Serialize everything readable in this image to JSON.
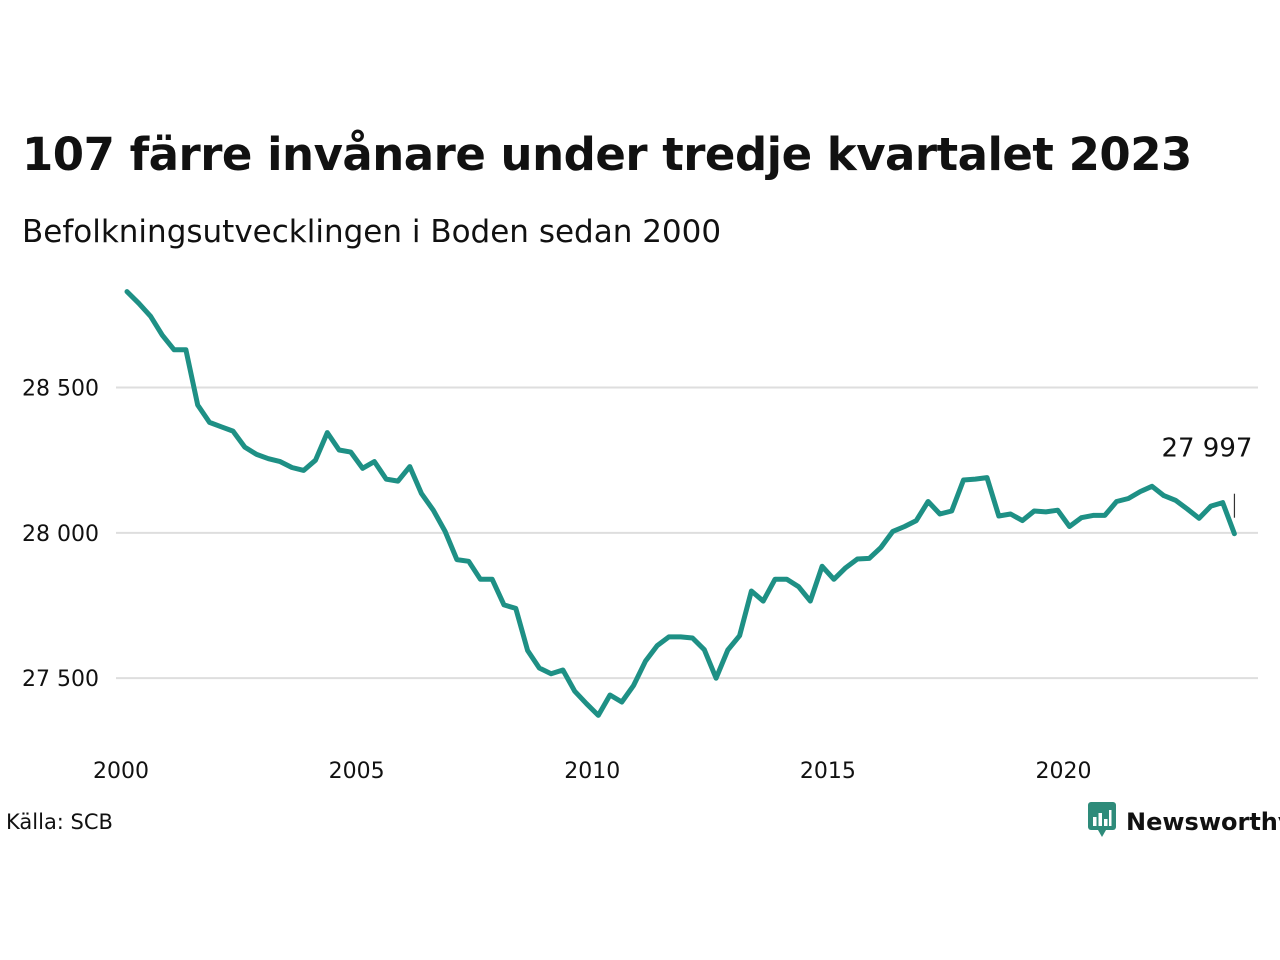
{
  "title": "107 färre invånare under tredje kvartalet 2023",
  "subtitle": "Befolkningsutvecklingen i Boden sedan 2000",
  "source": "Källa: SCB",
  "brand": {
    "name": "Newsworthy",
    "icon": "newsworthy-logo-icon",
    "color": "#2e8b7a"
  },
  "chart_data": {
    "type": "line",
    "color": "#1e9085",
    "grid": true,
    "x_ticks": [
      2000,
      2005,
      2010,
      2015,
      2020
    ],
    "y_ticks": [
      {
        "value": 27500,
        "label": "27 500"
      },
      {
        "value": 28000,
        "label": "28 000"
      },
      {
        "value": 28500,
        "label": "28 500"
      }
    ],
    "xlim": [
      2000,
      2024
    ],
    "ylim": [
      27270,
      28870
    ],
    "end_label": "27 997",
    "x": [
      2000.0,
      2000.25,
      2000.5,
      2000.75,
      2001.0,
      2001.25,
      2001.5,
      2001.75,
      2002.0,
      2002.25,
      2002.5,
      2002.75,
      2003.0,
      2003.25,
      2003.5,
      2003.75,
      2004.0,
      2004.25,
      2004.5,
      2004.75,
      2005.0,
      2005.25,
      2005.5,
      2005.75,
      2006.0,
      2006.25,
      2006.5,
      2006.75,
      2007.0,
      2007.25,
      2007.5,
      2007.75,
      2008.0,
      2008.25,
      2008.5,
      2008.75,
      2009.0,
      2009.25,
      2009.5,
      2009.75,
      2010.0,
      2010.25,
      2010.5,
      2010.75,
      2011.0,
      2011.25,
      2011.5,
      2011.75,
      2012.0,
      2012.25,
      2012.5,
      2012.75,
      2013.0,
      2013.25,
      2013.5,
      2013.75,
      2014.0,
      2014.25,
      2014.5,
      2014.75,
      2015.0,
      2015.25,
      2015.5,
      2015.75,
      2016.0,
      2016.25,
      2016.5,
      2016.75,
      2017.0,
      2017.25,
      2017.5,
      2017.75,
      2018.0,
      2018.25,
      2018.5,
      2018.75,
      2019.0,
      2019.25,
      2019.5,
      2019.75,
      2020.0,
      2020.25,
      2020.5,
      2020.75,
      2021.0,
      2021.25,
      2021.5,
      2021.75,
      2022.0,
      2022.25,
      2022.5,
      2022.75,
      2023.0,
      2023.25,
      2023.5
    ],
    "y": [
      28830,
      28790,
      28745,
      28680,
      28630,
      28630,
      28440,
      28380,
      28365,
      28350,
      28295,
      28270,
      28255,
      28245,
      28225,
      28215,
      28250,
      28345,
      28285,
      28278,
      28222,
      28245,
      28185,
      28178,
      28228,
      28135,
      28078,
      28005,
      27908,
      27902,
      27840,
      27840,
      27752,
      27740,
      27595,
      27535,
      27515,
      27528,
      27455,
      27412,
      27372,
      27442,
      27418,
      27475,
      27558,
      27612,
      27642,
      27642,
      27638,
      27598,
      27500,
      27597,
      27646,
      27800,
      27765,
      27840,
      27840,
      27815,
      27765,
      27885,
      27840,
      27880,
      27910,
      27912,
      27950,
      28005,
      28022,
      28042,
      28108,
      28065,
      28075,
      28182,
      28185,
      28190,
      28058,
      28065,
      28042,
      28075,
      28072,
      28078,
      28022,
      28052,
      28060,
      28060,
      28108,
      28118,
      28142,
      28160,
      28128,
      28112,
      28082,
      28050,
      28092,
      28104,
      27997
    ]
  }
}
